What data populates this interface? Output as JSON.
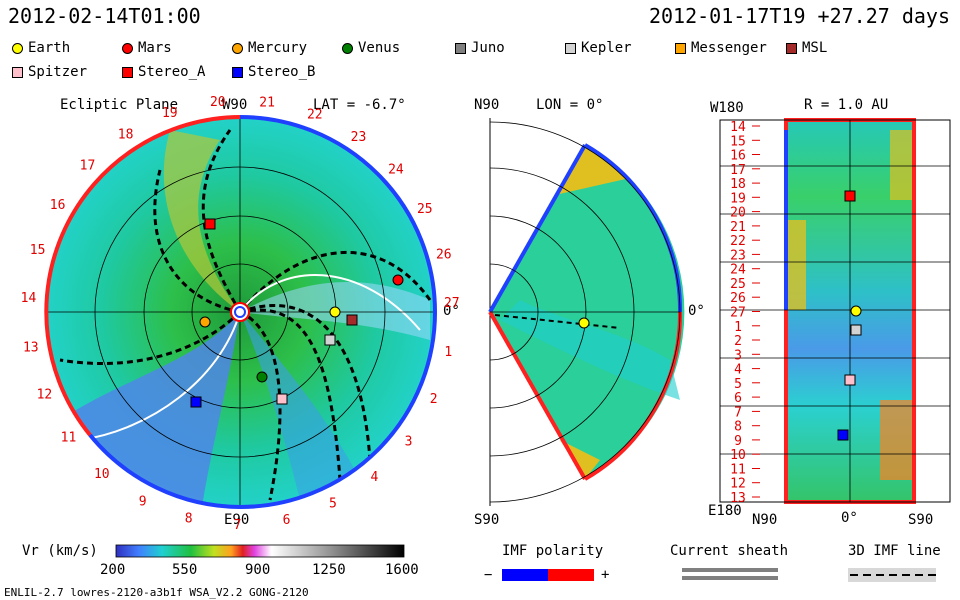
{
  "header": {
    "left_time": "2012-02-14T01:00",
    "right_time": "2012-01-17T19 +27.27 days"
  },
  "legend": [
    {
      "name": "Earth",
      "shape": "circle",
      "color": "#ffff00"
    },
    {
      "name": "Mars",
      "shape": "circle",
      "color": "#ff0000"
    },
    {
      "name": "Mercury",
      "shape": "circle",
      "color": "#ffa500"
    },
    {
      "name": "Venus",
      "shape": "circle",
      "color": "#008000"
    },
    {
      "name": "Juno",
      "shape": "square",
      "color": "#808080"
    },
    {
      "name": "Kepler",
      "shape": "square",
      "color": "#d3d3d3"
    },
    {
      "name": "Messenger",
      "shape": "square",
      "color": "#ffa500"
    },
    {
      "name": "MSL",
      "shape": "square",
      "color": "#a52a2a"
    },
    {
      "name": "Spitzer",
      "shape": "square",
      "color": "#ffc0cb"
    },
    {
      "name": "Stereo_A",
      "shape": "square",
      "color": "#ff0000"
    },
    {
      "name": "Stereo_B",
      "shape": "square",
      "color": "#0000ff"
    }
  ],
  "panel_ecliptic": {
    "title": "Ecliptic Plane",
    "top_label": "W90",
    "lat_label": "LAT = -6.7°",
    "bottom_label": "E90",
    "right_label": "0°",
    "tick_numbers": [
      "20",
      "21",
      "22",
      "23",
      "24",
      "25",
      "26",
      "27",
      "1",
      "2",
      "3",
      "4",
      "5",
      "6",
      "7",
      "8",
      "9",
      "10",
      "11",
      "12",
      "13",
      "14",
      "15",
      "16",
      "17",
      "18",
      "19"
    ]
  },
  "panel_meridional": {
    "top_label": "N90",
    "lon_label": "LON = 0°",
    "bottom_label": "S90",
    "right_label": "0°"
  },
  "panel_map": {
    "top_left": "W180",
    "r_label": "R = 1.0 AU",
    "bottom_left": "E180",
    "x_labels": [
      "N90",
      "0°",
      "S90"
    ],
    "y_labels": [
      "14",
      "15",
      "16",
      "17",
      "18",
      "19",
      "20",
      "21",
      "22",
      "23",
      "24",
      "25",
      "26",
      "27",
      "1",
      "2",
      "3",
      "4",
      "5",
      "6",
      "7",
      "8",
      "9",
      "10",
      "11",
      "12",
      "13"
    ]
  },
  "colorbar": {
    "label": "Vr (km/s)",
    "ticks": [
      "200",
      "550",
      "900",
      "1250",
      "1600"
    ]
  },
  "imf": {
    "title": "IMF polarity",
    "minus": "−",
    "plus": "+",
    "neg_color": "#0000ff",
    "pos_color": "#ff0000"
  },
  "current_sheath": {
    "title": "Current sheath"
  },
  "imf_line": {
    "title": "3D IMF line"
  },
  "footer": {
    "model": "ENLIL-2.7 lowres-2120-a3b1f WSA_V2.2 GONG-2120"
  }
}
